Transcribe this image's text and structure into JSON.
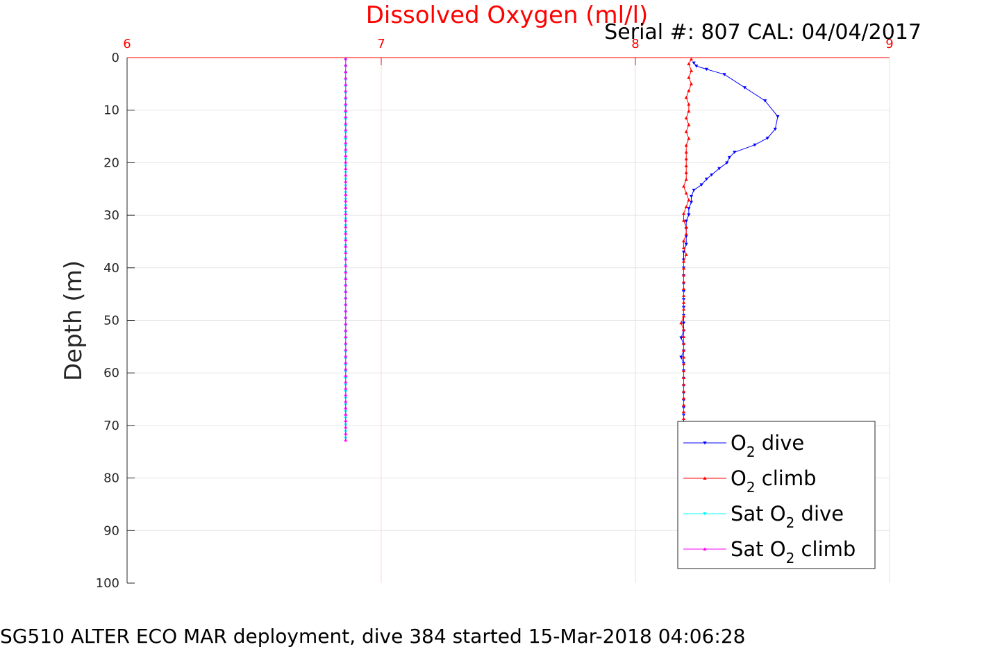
{
  "chart_data": {
    "type": "line",
    "title": "Dissolved Oxygen (ml/l)",
    "serial_text": "Serial #: 807  CAL: 04/04/2017",
    "ylabel": "Depth (m)",
    "caption": "SG510 ALTER ECO MAR deployment, dive 384 started 15-Mar-2018 04:06:28",
    "xlim": [
      6,
      9
    ],
    "ylim": [
      0,
      100
    ],
    "y_reversed": true,
    "x_axis_position": "top",
    "x_ticks": [
      "6",
      "7",
      "8",
      "9"
    ],
    "y_ticks": [
      "0",
      "10",
      "20",
      "30",
      "40",
      "50",
      "60",
      "70",
      "80",
      "90",
      "100"
    ],
    "grid": true,
    "legend_position": "bottom-right",
    "series": [
      {
        "legend_parts": [
          "O",
          "2",
          " dive"
        ],
        "color": "#0000ff",
        "marker": "triangle-down",
        "points": [
          [
            8.23,
            1.0
          ],
          [
            8.24,
            1.6
          ],
          [
            8.28,
            2.2
          ],
          [
            8.35,
            3.2
          ],
          [
            8.43,
            5.7
          ],
          [
            8.51,
            8.2
          ],
          [
            8.56,
            11.2
          ],
          [
            8.55,
            13.6
          ],
          [
            8.52,
            15.3
          ],
          [
            8.47,
            16.6
          ],
          [
            8.39,
            18.0
          ],
          [
            8.37,
            19.0
          ],
          [
            8.36,
            20.0
          ],
          [
            8.33,
            21.1
          ],
          [
            8.3,
            22.3
          ],
          [
            8.28,
            23.1
          ],
          [
            8.26,
            24.2
          ],
          [
            8.23,
            25.2
          ],
          [
            8.22,
            26.4
          ],
          [
            8.22,
            27.5
          ],
          [
            8.21,
            28.7
          ],
          [
            8.21,
            29.9
          ],
          [
            8.2,
            31.1
          ],
          [
            8.2,
            32.5
          ],
          [
            8.2,
            34.0
          ],
          [
            8.2,
            35.5
          ],
          [
            8.19,
            37.0
          ],
          [
            8.19,
            38.5
          ],
          [
            8.19,
            40.0
          ],
          [
            8.19,
            41.5
          ],
          [
            8.19,
            43.0
          ],
          [
            8.19,
            44.5
          ],
          [
            8.19,
            46.0
          ],
          [
            8.19,
            47.5
          ],
          [
            8.19,
            49.0
          ],
          [
            8.19,
            50.5
          ],
          [
            8.19,
            52.0
          ],
          [
            8.18,
            53.3
          ],
          [
            8.19,
            54.6
          ],
          [
            8.19,
            55.8
          ],
          [
            8.18,
            57.0
          ],
          [
            8.19,
            58.2
          ],
          [
            8.19,
            59.6
          ],
          [
            8.19,
            61.0
          ],
          [
            8.19,
            62.4
          ],
          [
            8.19,
            63.8
          ],
          [
            8.19,
            65.2
          ],
          [
            8.19,
            66.6
          ],
          [
            8.19,
            68.0
          ],
          [
            8.19,
            69.4
          ]
        ]
      },
      {
        "legend_parts": [
          "O",
          "2",
          " climb"
        ],
        "color": "#ff0000",
        "marker": "triangle-up",
        "points": [
          [
            8.22,
            0.3
          ],
          [
            8.21,
            1.2
          ],
          [
            8.22,
            2.5
          ],
          [
            8.21,
            3.8
          ],
          [
            8.22,
            5.0
          ],
          [
            8.21,
            6.3
          ],
          [
            8.2,
            7.6
          ],
          [
            8.21,
            8.9
          ],
          [
            8.21,
            10.2
          ],
          [
            8.2,
            11.5
          ],
          [
            8.21,
            12.8
          ],
          [
            8.2,
            14.1
          ],
          [
            8.21,
            15.4
          ],
          [
            8.2,
            16.7
          ],
          [
            8.2,
            18.0
          ],
          [
            8.2,
            19.3
          ],
          [
            8.2,
            20.6
          ],
          [
            8.2,
            21.9
          ],
          [
            8.2,
            23.2
          ],
          [
            8.19,
            24.5
          ],
          [
            8.2,
            25.8
          ],
          [
            8.21,
            27.1
          ],
          [
            8.2,
            28.4
          ],
          [
            8.19,
            29.7
          ],
          [
            8.19,
            31.0
          ],
          [
            8.2,
            32.3
          ],
          [
            8.2,
            33.6
          ],
          [
            8.19,
            34.9
          ],
          [
            8.19,
            36.2
          ],
          [
            8.2,
            37.5
          ],
          [
            8.19,
            38.8
          ],
          [
            8.19,
            40.1
          ],
          [
            8.19,
            41.4
          ],
          [
            8.19,
            42.7
          ],
          [
            8.19,
            44.0
          ],
          [
            8.19,
            45.3
          ],
          [
            8.19,
            46.6
          ],
          [
            8.19,
            47.9
          ],
          [
            8.19,
            49.2
          ],
          [
            8.18,
            50.5
          ],
          [
            8.19,
            51.8
          ],
          [
            8.19,
            53.1
          ],
          [
            8.19,
            54.4
          ],
          [
            8.19,
            55.7
          ],
          [
            8.19,
            57.0
          ],
          [
            8.19,
            58.3
          ],
          [
            8.19,
            59.6
          ],
          [
            8.19,
            60.9
          ],
          [
            8.19,
            62.2
          ],
          [
            8.19,
            63.5
          ],
          [
            8.19,
            64.8
          ],
          [
            8.19,
            66.1
          ],
          [
            8.19,
            67.4
          ],
          [
            8.19,
            68.7
          ]
        ]
      },
      {
        "legend_parts": [
          "Sat O",
          "2",
          " dive"
        ],
        "color": "#00ffff",
        "marker": "triangle-down",
        "x": 6.86,
        "depth_start": 0.4,
        "depth_end": 72.4,
        "n_points": 58
      },
      {
        "legend_parts": [
          "Sat O",
          "2",
          " climb"
        ],
        "color": "#ff00ff",
        "marker": "triangle-up",
        "x": 6.86,
        "depth_start": 0.2,
        "depth_end": 72.8,
        "n_points": 60
      }
    ]
  }
}
